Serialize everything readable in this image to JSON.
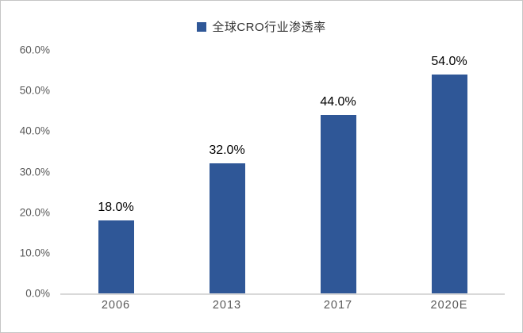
{
  "colors": {
    "background": "#ffffff",
    "frame_border": "#c6c6c6",
    "bar": "#2f5797",
    "axis_line": "#d9d9d9",
    "tick_text": "#595959",
    "data_label_text": "#000000",
    "legend_text": "#333333"
  },
  "chart_data": {
    "type": "bar",
    "title": "",
    "legend": {
      "label": "全球CRO行业渗透率",
      "position": "top",
      "marker": "square"
    },
    "categories": [
      "2006",
      "2013",
      "2017",
      "2020E"
    ],
    "series": [
      {
        "name": "全球CRO行业渗透率",
        "values": [
          18.0,
          32.0,
          44.0,
          54.0
        ]
      }
    ],
    "data_labels": [
      "18.0%",
      "32.0%",
      "44.0%",
      "54.0%"
    ],
    "xlabel": "",
    "ylabel": "",
    "ylim": [
      0,
      60
    ],
    "ytick_step": 10,
    "yticks": [
      "0.0%",
      "10.0%",
      "20.0%",
      "30.0%",
      "40.0%",
      "50.0%",
      "60.0%"
    ],
    "grid": "off",
    "plot_background": "#ffffff"
  }
}
